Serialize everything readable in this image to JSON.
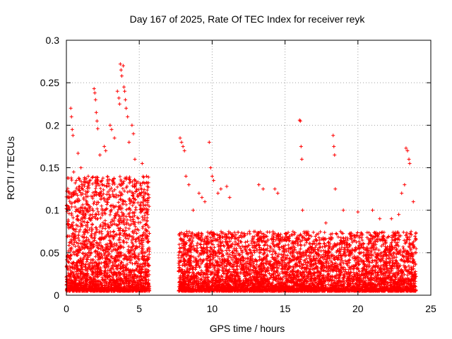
{
  "chart_data": {
    "type": "scatter",
    "title": "Day 167 of 2025, Rate Of TEC Index for receiver reyk",
    "xlabel": "GPS time / hours",
    "ylabel": "ROTI / TECUs",
    "xlim": [
      0,
      25
    ],
    "ylim": [
      0,
      0.3
    ],
    "xticks": [
      0,
      5,
      10,
      15,
      20,
      25
    ],
    "yticks": [
      0,
      0.05,
      0.1,
      0.15,
      0.2,
      0.25,
      0.3
    ],
    "xtick_labels": [
      "0",
      "5",
      "10",
      "15",
      "20",
      "25"
    ],
    "ytick_labels": [
      "0",
      "0.05",
      "0.1",
      "0.15",
      "0.2",
      "0.25",
      "0.3"
    ],
    "grid": true,
    "legend": "none",
    "marker": "plus",
    "color": "#ff0000",
    "series": [
      {
        "segments": [
          {
            "x_range": [
              0.0,
              5.7
            ],
            "y_range": [
              0.005,
              0.14
            ],
            "count": 2400
          },
          {
            "x_range": [
              7.7,
              24.0
            ],
            "y_range": [
              0.005,
              0.075
            ],
            "count": 5200
          }
        ],
        "points": [
          [
            0.05,
            0.105
          ],
          [
            0.3,
            0.22
          ],
          [
            0.35,
            0.21
          ],
          [
            0.4,
            0.195
          ],
          [
            0.45,
            0.188
          ],
          [
            0.8,
            0.167
          ],
          [
            0.5,
            0.145
          ],
          [
            1.0,
            0.15
          ],
          [
            1.2,
            0.13
          ],
          [
            1.5,
            0.14
          ],
          [
            1.9,
            0.243
          ],
          [
            1.95,
            0.238
          ],
          [
            2.0,
            0.23
          ],
          [
            2.05,
            0.215
          ],
          [
            2.1,
            0.205
          ],
          [
            2.15,
            0.196
          ],
          [
            2.3,
            0.165
          ],
          [
            2.6,
            0.175
          ],
          [
            2.7,
            0.17
          ],
          [
            3.0,
            0.2
          ],
          [
            3.1,
            0.195
          ],
          [
            3.3,
            0.185
          ],
          [
            3.5,
            0.24
          ],
          [
            3.6,
            0.232
          ],
          [
            3.65,
            0.225
          ],
          [
            3.7,
            0.272
          ],
          [
            3.75,
            0.265
          ],
          [
            3.8,
            0.258
          ],
          [
            3.9,
            0.27
          ],
          [
            3.95,
            0.245
          ],
          [
            4.0,
            0.24
          ],
          [
            4.05,
            0.23
          ],
          [
            4.1,
            0.22
          ],
          [
            4.2,
            0.21
          ],
          [
            4.3,
            0.18
          ],
          [
            4.5,
            0.2
          ],
          [
            4.6,
            0.19
          ],
          [
            4.7,
            0.16
          ],
          [
            5.2,
            0.155
          ],
          [
            5.5,
            0.14
          ],
          [
            7.8,
            0.185
          ],
          [
            7.9,
            0.18
          ],
          [
            8.0,
            0.175
          ],
          [
            8.1,
            0.17
          ],
          [
            8.2,
            0.14
          ],
          [
            8.4,
            0.13
          ],
          [
            8.7,
            0.1
          ],
          [
            9.1,
            0.12
          ],
          [
            9.3,
            0.115
          ],
          [
            9.5,
            0.11
          ],
          [
            9.8,
            0.18
          ],
          [
            9.9,
            0.15
          ],
          [
            10.0,
            0.14
          ],
          [
            10.1,
            0.135
          ],
          [
            10.4,
            0.12
          ],
          [
            10.6,
            0.125
          ],
          [
            11.0,
            0.128
          ],
          [
            11.2,
            0.115
          ],
          [
            13.2,
            0.13
          ],
          [
            13.5,
            0.125
          ],
          [
            14.3,
            0.125
          ],
          [
            14.5,
            0.12
          ],
          [
            16.0,
            0.206
          ],
          [
            16.05,
            0.205
          ],
          [
            16.1,
            0.175
          ],
          [
            16.15,
            0.16
          ],
          [
            16.2,
            0.1
          ],
          [
            18.3,
            0.188
          ],
          [
            18.35,
            0.175
          ],
          [
            18.4,
            0.165
          ],
          [
            18.45,
            0.125
          ],
          [
            19.0,
            0.1
          ],
          [
            20.0,
            0.098
          ],
          [
            21.0,
            0.1
          ],
          [
            22.3,
            0.09
          ],
          [
            23.3,
            0.173
          ],
          [
            23.4,
            0.17
          ],
          [
            23.5,
            0.16
          ],
          [
            23.55,
            0.155
          ],
          [
            23.2,
            0.13
          ],
          [
            23.0,
            0.12
          ],
          [
            23.8,
            0.11
          ],
          [
            22.8,
            0.095
          ],
          [
            21.5,
            0.09
          ],
          [
            17.8,
            0.085
          ]
        ]
      }
    ]
  }
}
